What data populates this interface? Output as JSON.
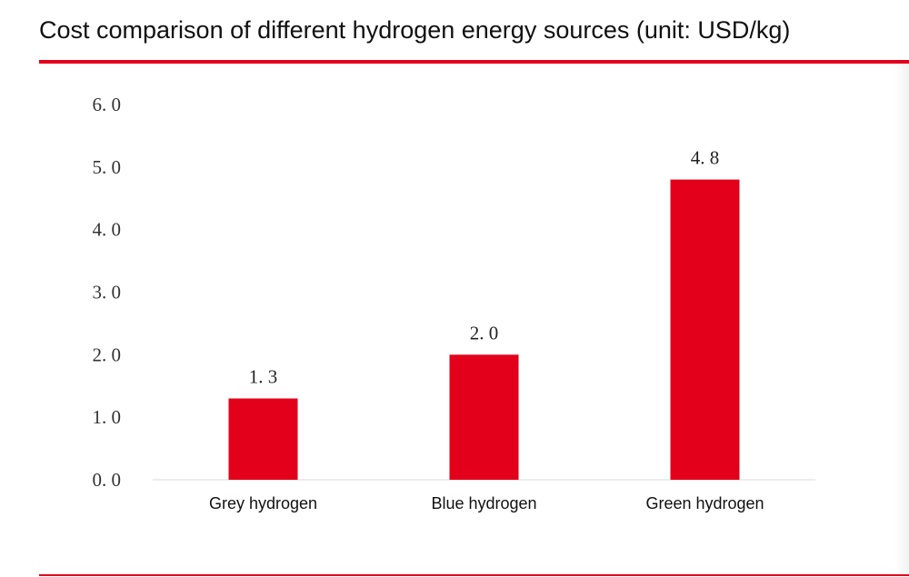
{
  "colors": {
    "accent": "#e3001b",
    "bar": "#e3001b",
    "axis": "#d9d9d9"
  },
  "chart_data": {
    "type": "bar",
    "title": "Cost comparison of different hydrogen energy sources (unit: USD/kg)",
    "categories": [
      "Grey hydrogen",
      "Blue hydrogen",
      "Green hydrogen"
    ],
    "values": [
      1.3,
      2.0,
      4.8
    ],
    "value_labels": [
      "1. 3",
      "2. 0",
      "4. 8"
    ],
    "yticks": [
      0,
      1,
      2,
      3,
      4,
      5,
      6
    ],
    "ytick_labels": [
      "0. 0",
      "1. 0",
      "2. 0",
      "3. 0",
      "4. 0",
      "5. 0",
      "6. 0"
    ],
    "ylim": [
      0,
      6
    ],
    "grid": false,
    "legend": "none",
    "xlabel": "",
    "ylabel": ""
  }
}
